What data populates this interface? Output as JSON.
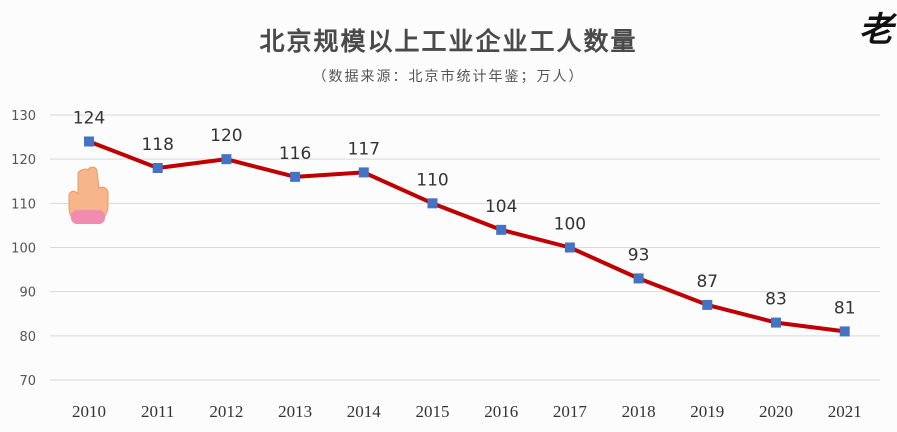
{
  "title": "北京规模以上工业企业工人数量",
  "subtitle": "（数据来源：北京市统计年鉴；万人）",
  "corner_mark": "老",
  "icons": {
    "pointer": "pointing-hand-icon"
  },
  "colors": {
    "line": "#c00000",
    "marker": "#4472c4",
    "grid": "#d9d9d9"
  },
  "chart_data": {
    "type": "line",
    "title": "北京规模以上工业企业工人数量",
    "subtitle": "（数据来源：北京市统计年鉴；万人）",
    "categories": [
      "2010",
      "2011",
      "2012",
      "2013",
      "2014",
      "2015",
      "2016",
      "2017",
      "2018",
      "2019",
      "2020",
      "2021"
    ],
    "values": [
      124,
      118,
      120,
      116,
      117,
      110,
      104,
      100,
      93,
      87,
      83,
      81
    ],
    "data_labels": [
      "124",
      "118",
      "120",
      "116",
      "117",
      "110",
      "104",
      "100",
      "93",
      "87",
      "83",
      "81"
    ],
    "y_ticks": [
      "70",
      "80",
      "90",
      "100",
      "110",
      "120",
      "130"
    ],
    "ylim": [
      70,
      130
    ],
    "grid": true,
    "legend": "none"
  }
}
